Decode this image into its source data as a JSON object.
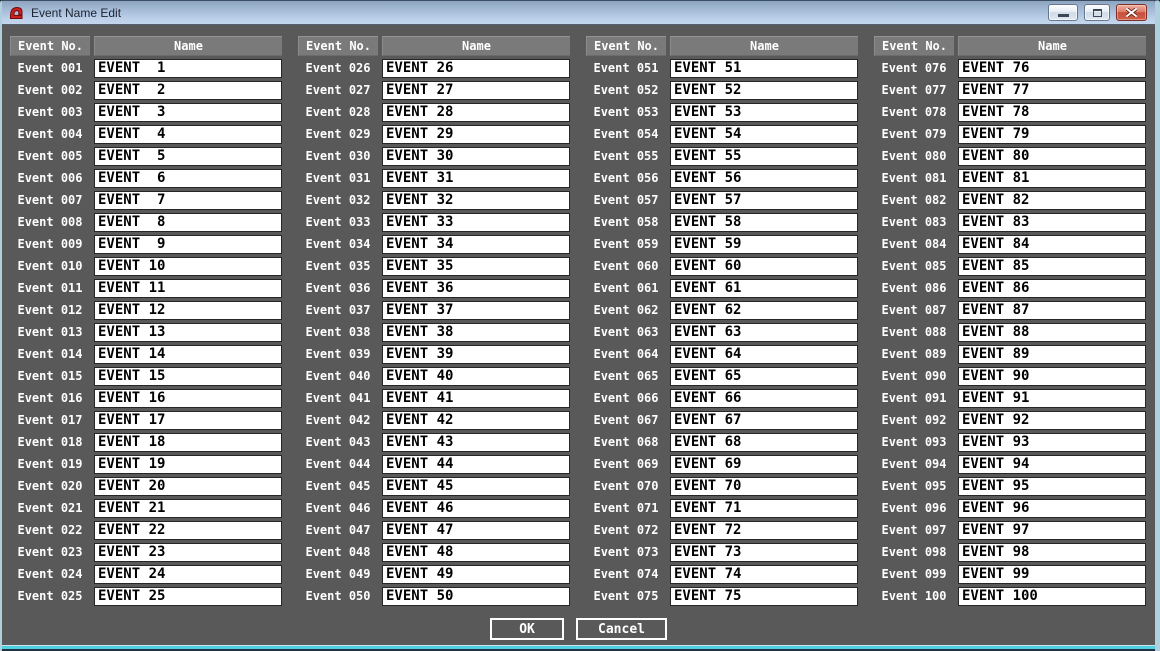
{
  "window": {
    "title": "Event Name Edit",
    "controls": {
      "minimize": "Minimize",
      "maximize": "Maximize",
      "close": "Close"
    }
  },
  "table": {
    "headers": {
      "no": "Event No.",
      "name": "Name"
    }
  },
  "buttons": {
    "ok": "OK",
    "cancel": "Cancel"
  },
  "colors": {
    "content_bg": "#595959",
    "header_bg": "#7a7a7a",
    "field_bg": "#ffffff",
    "field_text": "#000000",
    "label_text": "#ffffff",
    "titlebar_top": "#8da5c0",
    "titlebar_bottom": "#c3d6ec",
    "border_cyan": "#4ed0e2",
    "close_button_red": "#c74f3b",
    "app_icon_red": "#cc1f1f"
  },
  "events": [
    {
      "no": "Event 001",
      "name": "EVENT  1"
    },
    {
      "no": "Event 002",
      "name": "EVENT  2"
    },
    {
      "no": "Event 003",
      "name": "EVENT  3"
    },
    {
      "no": "Event 004",
      "name": "EVENT  4"
    },
    {
      "no": "Event 005",
      "name": "EVENT  5"
    },
    {
      "no": "Event 006",
      "name": "EVENT  6"
    },
    {
      "no": "Event 007",
      "name": "EVENT  7"
    },
    {
      "no": "Event 008",
      "name": "EVENT  8"
    },
    {
      "no": "Event 009",
      "name": "EVENT  9"
    },
    {
      "no": "Event 010",
      "name": "EVENT 10"
    },
    {
      "no": "Event 011",
      "name": "EVENT 11"
    },
    {
      "no": "Event 012",
      "name": "EVENT 12"
    },
    {
      "no": "Event 013",
      "name": "EVENT 13"
    },
    {
      "no": "Event 014",
      "name": "EVENT 14"
    },
    {
      "no": "Event 015",
      "name": "EVENT 15"
    },
    {
      "no": "Event 016",
      "name": "EVENT 16"
    },
    {
      "no": "Event 017",
      "name": "EVENT 17"
    },
    {
      "no": "Event 018",
      "name": "EVENT 18"
    },
    {
      "no": "Event 019",
      "name": "EVENT 19"
    },
    {
      "no": "Event 020",
      "name": "EVENT 20"
    },
    {
      "no": "Event 021",
      "name": "EVENT 21"
    },
    {
      "no": "Event 022",
      "name": "EVENT 22"
    },
    {
      "no": "Event 023",
      "name": "EVENT 23"
    },
    {
      "no": "Event 024",
      "name": "EVENT 24"
    },
    {
      "no": "Event 025",
      "name": "EVENT 25"
    },
    {
      "no": "Event 026",
      "name": "EVENT 26"
    },
    {
      "no": "Event 027",
      "name": "EVENT 27"
    },
    {
      "no": "Event 028",
      "name": "EVENT 28"
    },
    {
      "no": "Event 029",
      "name": "EVENT 29"
    },
    {
      "no": "Event 030",
      "name": "EVENT 30"
    },
    {
      "no": "Event 031",
      "name": "EVENT 31"
    },
    {
      "no": "Event 032",
      "name": "EVENT 32"
    },
    {
      "no": "Event 033",
      "name": "EVENT 33"
    },
    {
      "no": "Event 034",
      "name": "EVENT 34"
    },
    {
      "no": "Event 035",
      "name": "EVENT 35"
    },
    {
      "no": "Event 036",
      "name": "EVENT 36"
    },
    {
      "no": "Event 037",
      "name": "EVENT 37"
    },
    {
      "no": "Event 038",
      "name": "EVENT 38"
    },
    {
      "no": "Event 039",
      "name": "EVENT 39"
    },
    {
      "no": "Event 040",
      "name": "EVENT 40"
    },
    {
      "no": "Event 041",
      "name": "EVENT 41"
    },
    {
      "no": "Event 042",
      "name": "EVENT 42"
    },
    {
      "no": "Event 043",
      "name": "EVENT 43"
    },
    {
      "no": "Event 044",
      "name": "EVENT 44"
    },
    {
      "no": "Event 045",
      "name": "EVENT 45"
    },
    {
      "no": "Event 046",
      "name": "EVENT 46"
    },
    {
      "no": "Event 047",
      "name": "EVENT 47"
    },
    {
      "no": "Event 048",
      "name": "EVENT 48"
    },
    {
      "no": "Event 049",
      "name": "EVENT 49"
    },
    {
      "no": "Event 050",
      "name": "EVENT 50"
    },
    {
      "no": "Event 051",
      "name": "EVENT 51"
    },
    {
      "no": "Event 052",
      "name": "EVENT 52"
    },
    {
      "no": "Event 053",
      "name": "EVENT 53"
    },
    {
      "no": "Event 054",
      "name": "EVENT 54"
    },
    {
      "no": "Event 055",
      "name": "EVENT 55"
    },
    {
      "no": "Event 056",
      "name": "EVENT 56"
    },
    {
      "no": "Event 057",
      "name": "EVENT 57"
    },
    {
      "no": "Event 058",
      "name": "EVENT 58"
    },
    {
      "no": "Event 059",
      "name": "EVENT 59"
    },
    {
      "no": "Event 060",
      "name": "EVENT 60"
    },
    {
      "no": "Event 061",
      "name": "EVENT 61"
    },
    {
      "no": "Event 062",
      "name": "EVENT 62"
    },
    {
      "no": "Event 063",
      "name": "EVENT 63"
    },
    {
      "no": "Event 064",
      "name": "EVENT 64"
    },
    {
      "no": "Event 065",
      "name": "EVENT 65"
    },
    {
      "no": "Event 066",
      "name": "EVENT 66"
    },
    {
      "no": "Event 067",
      "name": "EVENT 67"
    },
    {
      "no": "Event 068",
      "name": "EVENT 68"
    },
    {
      "no": "Event 069",
      "name": "EVENT 69"
    },
    {
      "no": "Event 070",
      "name": "EVENT 70"
    },
    {
      "no": "Event 071",
      "name": "EVENT 71"
    },
    {
      "no": "Event 072",
      "name": "EVENT 72"
    },
    {
      "no": "Event 073",
      "name": "EVENT 73"
    },
    {
      "no": "Event 074",
      "name": "EVENT 74"
    },
    {
      "no": "Event 075",
      "name": "EVENT 75"
    },
    {
      "no": "Event 076",
      "name": "EVENT 76"
    },
    {
      "no": "Event 077",
      "name": "EVENT 77"
    },
    {
      "no": "Event 078",
      "name": "EVENT 78"
    },
    {
      "no": "Event 079",
      "name": "EVENT 79"
    },
    {
      "no": "Event 080",
      "name": "EVENT 80"
    },
    {
      "no": "Event 081",
      "name": "EVENT 81"
    },
    {
      "no": "Event 082",
      "name": "EVENT 82"
    },
    {
      "no": "Event 083",
      "name": "EVENT 83"
    },
    {
      "no": "Event 084",
      "name": "EVENT 84"
    },
    {
      "no": "Event 085",
      "name": "EVENT 85"
    },
    {
      "no": "Event 086",
      "name": "EVENT 86"
    },
    {
      "no": "Event 087",
      "name": "EVENT 87"
    },
    {
      "no": "Event 088",
      "name": "EVENT 88"
    },
    {
      "no": "Event 089",
      "name": "EVENT 89"
    },
    {
      "no": "Event 090",
      "name": "EVENT 90"
    },
    {
      "no": "Event 091",
      "name": "EVENT 91"
    },
    {
      "no": "Event 092",
      "name": "EVENT 92"
    },
    {
      "no": "Event 093",
      "name": "EVENT 93"
    },
    {
      "no": "Event 094",
      "name": "EVENT 94"
    },
    {
      "no": "Event 095",
      "name": "EVENT 95"
    },
    {
      "no": "Event 096",
      "name": "EVENT 96"
    },
    {
      "no": "Event 097",
      "name": "EVENT 97"
    },
    {
      "no": "Event 098",
      "name": "EVENT 98"
    },
    {
      "no": "Event 099",
      "name": "EVENT 99"
    },
    {
      "no": "Event 100",
      "name": "EVENT 100"
    }
  ]
}
